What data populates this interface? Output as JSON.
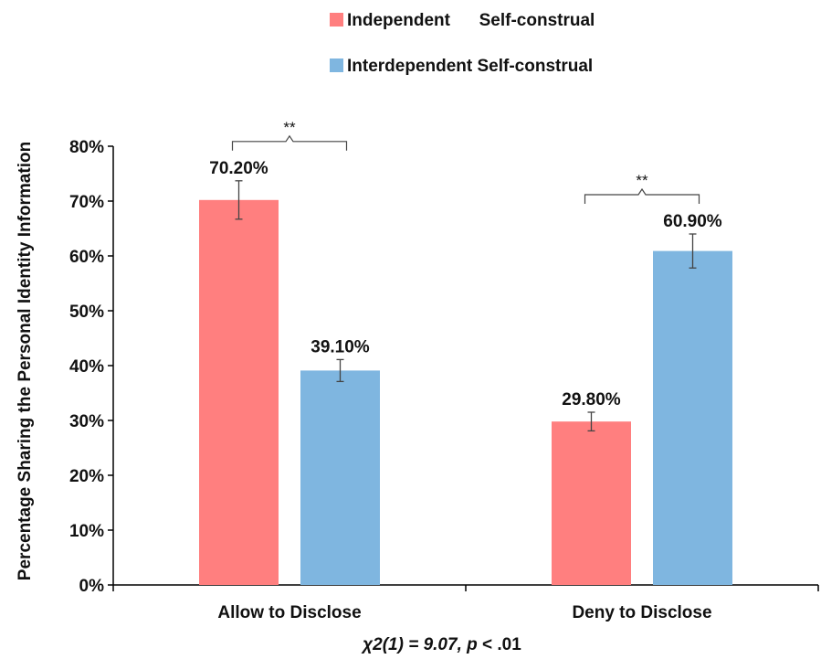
{
  "chart_data": {
    "type": "bar",
    "ylabel": "Percentage Sharing the  Personal Identity Information",
    "xlabel": "",
    "footnote_prefix": "χ2(1) = 9.07,  ",
    "footnote_p": "p",
    "footnote_suffix": " < .01",
    "categories": [
      "Allow to Disclose",
      "Deny to Disclose"
    ],
    "series": [
      {
        "name": "Independent      Self-construal",
        "color": "#ff7f7f",
        "values": [
          70.2,
          29.8
        ],
        "labels": [
          "70.20%",
          "29.80%"
        ],
        "error": [
          3.5,
          1.7
        ]
      },
      {
        "name": "Interdependent Self-construal",
        "color": "#7fb6e0",
        "values": [
          39.1,
          60.9
        ],
        "labels": [
          "39.10%",
          "60.90%"
        ],
        "error": [
          2.0,
          3.1
        ]
      }
    ],
    "ylim": [
      0,
      80
    ],
    "yticks": [
      0,
      10,
      20,
      30,
      40,
      50,
      60,
      70,
      80
    ],
    "ytick_labels": [
      "0%",
      "10%",
      "20%",
      "30%",
      "40%",
      "50%",
      "60%",
      "70%",
      "80%"
    ],
    "significance": [
      "**",
      "**"
    ],
    "legend_position": "top-right",
    "grid": false
  }
}
